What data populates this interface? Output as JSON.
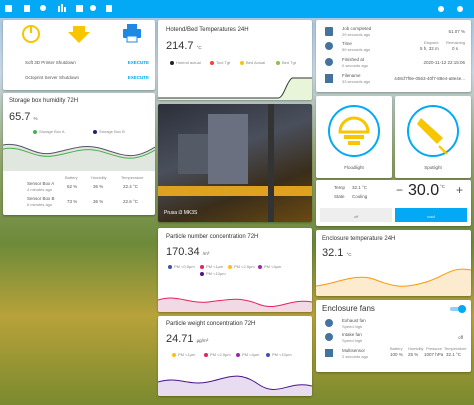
{
  "control_card": {
    "actions": [
      {
        "label": "Soft 3D Printer Shutdown",
        "button": "EXECUTE"
      },
      {
        "label": "Octoprint Server Shutdown",
        "button": "EXECUTE"
      }
    ]
  },
  "humidity_card": {
    "title": "Storage box humidity 72H",
    "value": "65.7",
    "unit": "%",
    "legend": [
      "Storage Box A",
      "Storage Box B"
    ],
    "columns": [
      "Battery",
      "Humidity",
      "Temperature"
    ],
    "sensors": [
      {
        "name": "Sensor Box A",
        "time": "4 minutes ago",
        "battery": "62 %",
        "humidity": "36 %",
        "temperature": "22.4 °C"
      },
      {
        "name": "Sensor Box B",
        "time": "6 minutes ago",
        "battery": "73 %",
        "humidity": "36 %",
        "temperature": "22.6 °C"
      }
    ]
  },
  "temp_card": {
    "title": "Hotend/Bed Temperatures 24H",
    "value": "214.7",
    "unit": "°C",
    "legend": [
      "Hotend actual",
      "Tool Tgt",
      "Bed Actual",
      "Bed Tgt"
    ]
  },
  "camera": {
    "caption": "Prusa i3 MK3S"
  },
  "pm_number": {
    "title": "Particle number concentration 72H",
    "value": "170.34",
    "unit": "/m³",
    "legend": [
      "PM <0.5µm",
      "PM <1µm",
      "PM <2.5µm",
      "PM <4µm",
      "PM <10µm"
    ]
  },
  "pm_weight": {
    "title": "Particle weight concentration 72H",
    "value": "24.71",
    "unit": "µg/m³",
    "legend": [
      "PM <1µm",
      "PM <2.5µm",
      "PM <4µm",
      "PM <10µm"
    ]
  },
  "job_card": {
    "job_label": "Job completed",
    "job_time": "29 seconds ago",
    "job_value": "51.07 %",
    "time_label": "Time",
    "time_time": "59 seconds ago",
    "elapsed_label": "Elapsed",
    "elapsed": "5 h, 32 m",
    "remaining_label": "Remaining",
    "remaining": "0 s",
    "finished_label": "Finished at",
    "finished_time": "0 seconds ago",
    "finished_value": "2020-11-12 22:15:06",
    "file_label": "Filename",
    "file_time": "33 seconds ago",
    "file_value": "448cf7f9e-0563-40f7-88e4-a8e4e..."
  },
  "lights": [
    {
      "name": "Floodlight"
    },
    {
      "name": "Spotlight"
    }
  ],
  "climate": {
    "temp_label": "Temp",
    "temp": "32.1 °C",
    "state_label": "State",
    "state": "Cooling",
    "minus": "−",
    "target": "30.0",
    "target_unit": "°C",
    "plus": "+",
    "modes": [
      "off",
      "cool"
    ]
  },
  "enclosure_temp": {
    "title": "Enclosure temperature 24H",
    "value": "32.1",
    "unit": "°C"
  },
  "fans": {
    "title": "Enclosure fans",
    "items": [
      {
        "name": "Exhaust fan",
        "sub": "Speed high"
      },
      {
        "name": "Intake fan",
        "sub": "Speed high",
        "state": "off"
      }
    ],
    "sensor": {
      "name": "Multisensor",
      "time": "2 seconds ago",
      "columns": [
        "Battery",
        "Humidity",
        "Pressure",
        "Temperature"
      ],
      "values": [
        "100 %",
        "25 %",
        "1007 hPa",
        "32.1 °C"
      ]
    }
  }
}
